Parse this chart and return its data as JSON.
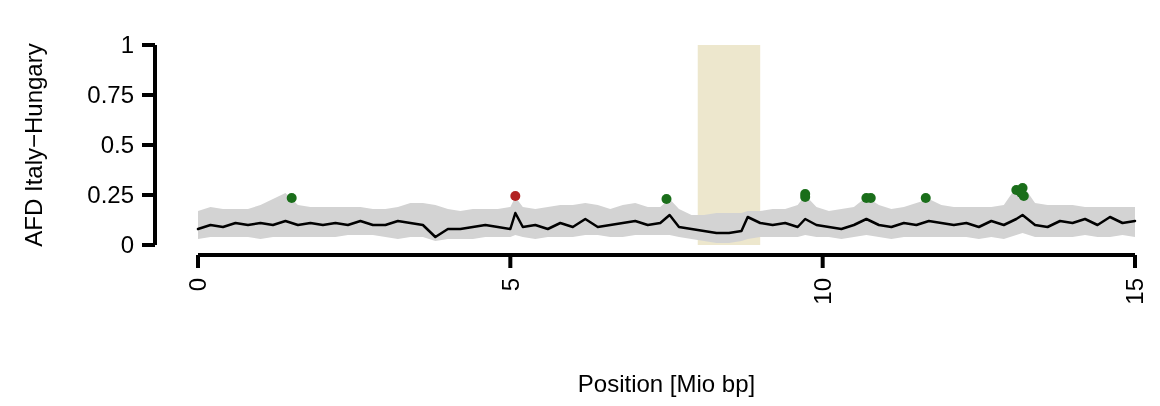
{
  "chart_data": {
    "type": "line",
    "xlabel": "Position [Mio bp]",
    "ylabel": "AFD Italy−Hungary",
    "xlim": [
      0,
      15
    ],
    "xticks": [
      0,
      5,
      10,
      15
    ],
    "ylim": [
      0,
      1
    ],
    "yticks": [
      0,
      0.25,
      0.5,
      0.75,
      1
    ],
    "grid": false,
    "bands": [
      {
        "axis": "x",
        "from": 8,
        "to": 9,
        "color": "#ede7cd"
      }
    ],
    "series": [
      {
        "color": "#000000",
        "x": [
          0,
          0.2,
          0.4,
          0.6,
          0.8,
          1,
          1.2,
          1.4,
          1.6,
          1.8,
          2,
          2.2,
          2.4,
          2.6,
          2.8,
          3,
          3.2,
          3.4,
          3.6,
          3.8,
          4,
          4.2,
          4.4,
          4.6,
          4.8,
          5,
          5.08,
          5.2,
          5.4,
          5.6,
          5.8,
          6,
          6.2,
          6.4,
          6.6,
          6.8,
          7,
          7.2,
          7.4,
          7.55,
          7.7,
          7.9,
          8.1,
          8.3,
          8.5,
          8.7,
          8.8,
          9,
          9.2,
          9.4,
          9.6,
          9.72,
          9.9,
          10.1,
          10.3,
          10.5,
          10.7,
          10.9,
          11.1,
          11.3,
          11.5,
          11.7,
          11.9,
          12.1,
          12.3,
          12.5,
          12.7,
          12.9,
          13.1,
          13.2,
          13.4,
          13.6,
          13.8,
          14,
          14.2,
          14.4,
          14.6,
          14.8,
          15
        ],
        "values": [
          0.08,
          0.1,
          0.09,
          0.11,
          0.1,
          0.11,
          0.1,
          0.12,
          0.1,
          0.11,
          0.1,
          0.11,
          0.1,
          0.12,
          0.1,
          0.1,
          0.12,
          0.11,
          0.1,
          0.04,
          0.08,
          0.08,
          0.09,
          0.1,
          0.09,
          0.08,
          0.16,
          0.09,
          0.1,
          0.08,
          0.11,
          0.09,
          0.13,
          0.09,
          0.1,
          0.11,
          0.12,
          0.1,
          0.11,
          0.15,
          0.09,
          0.08,
          0.07,
          0.06,
          0.06,
          0.07,
          0.14,
          0.11,
          0.1,
          0.11,
          0.09,
          0.13,
          0.1,
          0.09,
          0.08,
          0.1,
          0.13,
          0.1,
          0.09,
          0.11,
          0.1,
          0.12,
          0.11,
          0.1,
          0.11,
          0.09,
          0.12,
          0.1,
          0.13,
          0.15,
          0.1,
          0.09,
          0.12,
          0.11,
          0.13,
          0.1,
          0.14,
          0.11,
          0.12
        ],
        "upper": [
          0.17,
          0.19,
          0.18,
          0.18,
          0.18,
          0.2,
          0.23,
          0.26,
          0.2,
          0.19,
          0.19,
          0.19,
          0.19,
          0.19,
          0.18,
          0.18,
          0.19,
          0.21,
          0.21,
          0.2,
          0.18,
          0.17,
          0.18,
          0.18,
          0.18,
          0.19,
          0.24,
          0.19,
          0.18,
          0.19,
          0.2,
          0.2,
          0.21,
          0.2,
          0.18,
          0.2,
          0.21,
          0.19,
          0.19,
          0.23,
          0.18,
          0.15,
          0.15,
          0.16,
          0.16,
          0.16,
          0.17,
          0.17,
          0.18,
          0.18,
          0.2,
          0.25,
          0.19,
          0.17,
          0.18,
          0.19,
          0.24,
          0.2,
          0.18,
          0.19,
          0.21,
          0.23,
          0.2,
          0.19,
          0.19,
          0.19,
          0.19,
          0.2,
          0.29,
          0.3,
          0.21,
          0.2,
          0.2,
          0.2,
          0.19,
          0.19,
          0.19,
          0.19,
          0.19
        ],
        "lower": [
          0.03,
          0.04,
          0.04,
          0.04,
          0.04,
          0.03,
          0.04,
          0.04,
          0.04,
          0.04,
          0.04,
          0.04,
          0.05,
          0.05,
          0.05,
          0.04,
          0.03,
          0.04,
          0.04,
          0.02,
          0.03,
          0.03,
          0.03,
          0.04,
          0.04,
          0.04,
          0.05,
          0.04,
          0.03,
          0.04,
          0.04,
          0.04,
          0.05,
          0.05,
          0.04,
          0.04,
          0.05,
          0.05,
          0.05,
          0.05,
          0.04,
          0.03,
          0.02,
          0.01,
          0.01,
          0.02,
          0.03,
          0.04,
          0.04,
          0.04,
          0.04,
          0.05,
          0.04,
          0.04,
          0.03,
          0.04,
          0.05,
          0.04,
          0.03,
          0.04,
          0.04,
          0.04,
          0.04,
          0.04,
          0.04,
          0.03,
          0.04,
          0.03,
          0.05,
          0.06,
          0.04,
          0.04,
          0.04,
          0.04,
          0.05,
          0.04,
          0.04,
          0.05,
          0.04
        ]
      },
      {
        "type": "scatter",
        "marker": "circle",
        "x": [
          1.5,
          5.08,
          7.5,
          9.72,
          9.72,
          10.7,
          10.77,
          11.65,
          13.1,
          13.2,
          13.22,
          13.18
        ],
        "values": [
          0.235,
          0.245,
          0.23,
          0.255,
          0.24,
          0.235,
          0.235,
          0.235,
          0.275,
          0.285,
          0.245,
          0.26
        ],
        "colors": [
          "#1a6e1a",
          "#b22222",
          "#1a6e1a",
          "#1a6e1a",
          "#1a6e1a",
          "#1a6e1a",
          "#1a6e1a",
          "#1a6e1a",
          "#1a6e1a",
          "#1a6e1a",
          "#1a6e1a",
          "#1a6e1a"
        ]
      }
    ]
  }
}
